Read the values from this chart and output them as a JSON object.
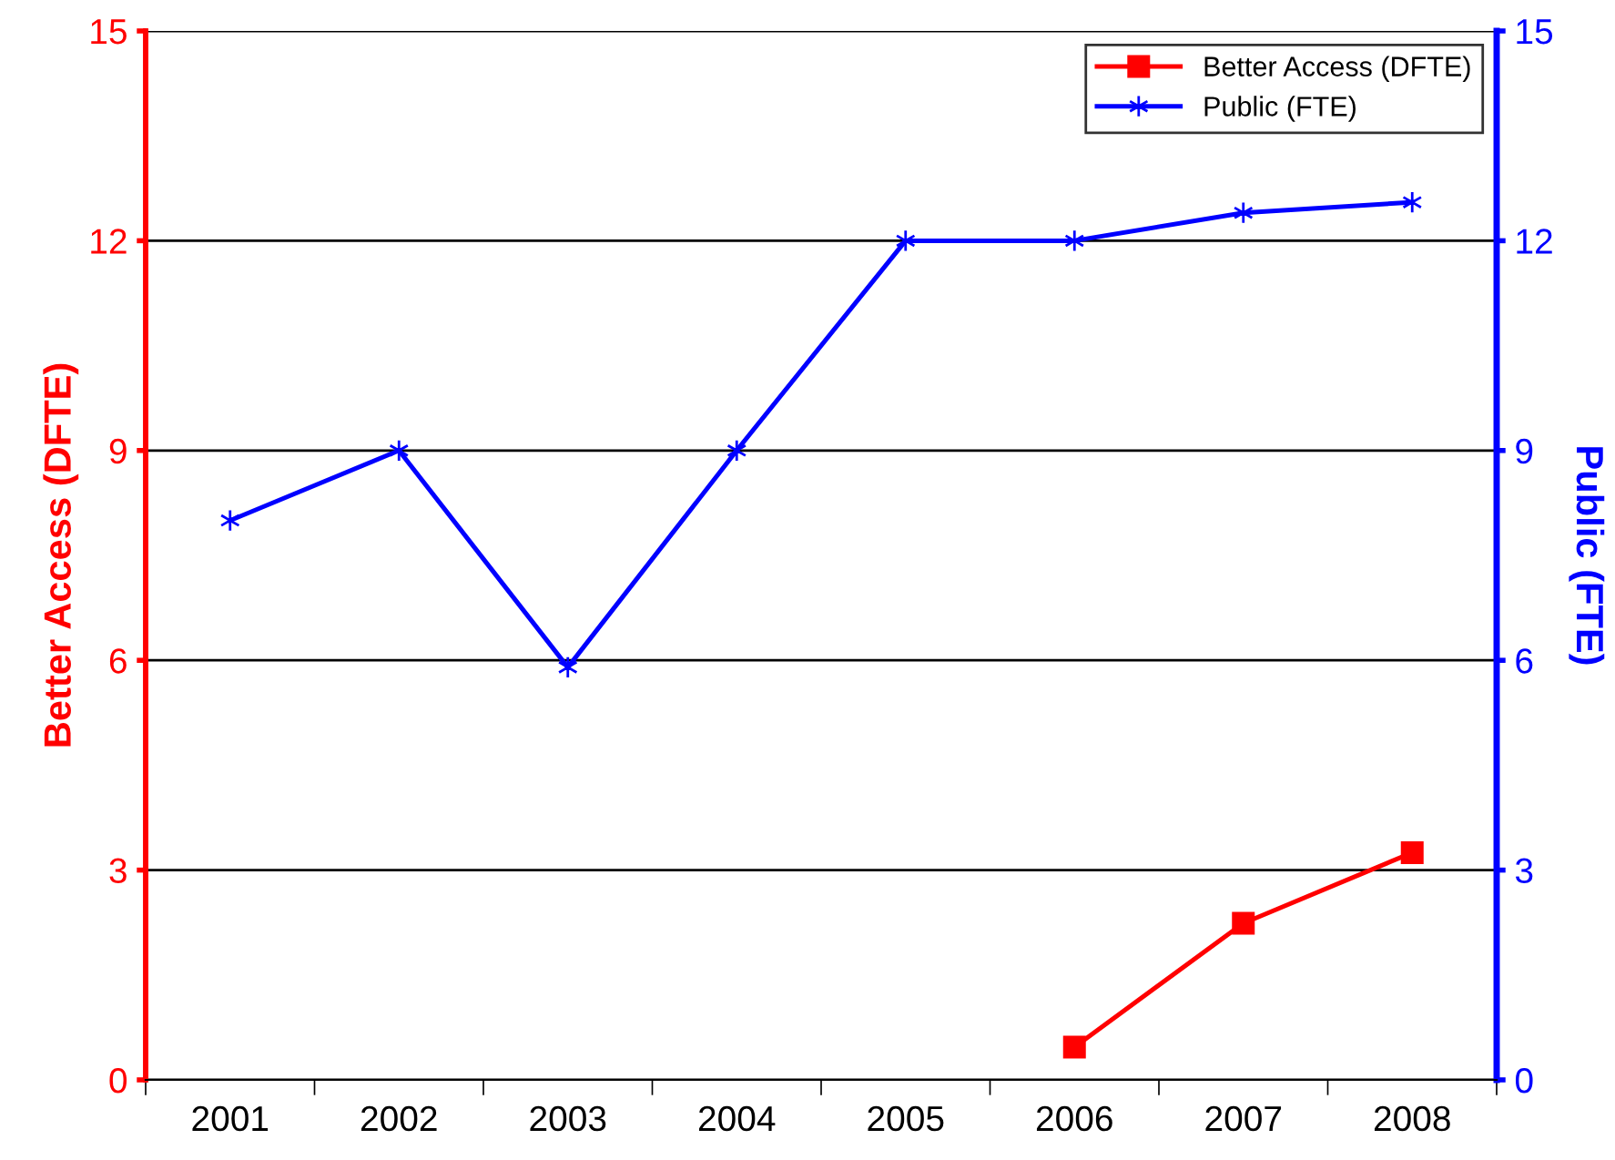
{
  "chart_data": {
    "type": "line",
    "categories": [
      "2001",
      "2002",
      "2003",
      "2004",
      "2005",
      "2006",
      "2007",
      "2008"
    ],
    "series": [
      {
        "name": "Better Access (DFTE)",
        "color": "#ff0000",
        "marker": "square",
        "values": [
          null,
          null,
          null,
          null,
          null,
          0.47,
          2.24,
          3.25
        ]
      },
      {
        "name": "Public (FTE)",
        "color": "#0000ff",
        "marker": "cross",
        "axis": "y2",
        "values": [
          8,
          9,
          5.9,
          9,
          12,
          12,
          12.4,
          12.55
        ]
      }
    ],
    "ylabel": "Better Access (DFTE)",
    "y2label": "Public (FTE)",
    "ylim": [
      0,
      15
    ],
    "yticks": [
      0,
      3,
      6,
      9,
      12,
      15
    ],
    "y2lim": [
      0,
      15
    ],
    "y2ticks": [
      0,
      3,
      6,
      9,
      12,
      15
    ],
    "grid": "y",
    "legend": "top right",
    "line_style": "solid"
  }
}
